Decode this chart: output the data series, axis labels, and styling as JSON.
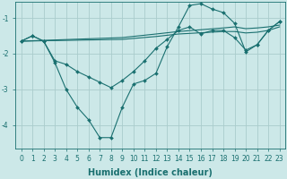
{
  "background_color": "#cce8e8",
  "grid_color": "#aacccc",
  "line_color": "#1a7070",
  "marker_color": "#1a7070",
  "xlabel": "Humidex (Indice chaleur)",
  "xlabel_fontsize": 7,
  "tick_fontsize": 5.5,
  "yticks": [
    -4,
    -3,
    -2,
    -1
  ],
  "xlim": [
    -0.5,
    23.5
  ],
  "ylim": [
    -4.65,
    -0.55
  ],
  "line1_x": [
    0,
    1,
    2,
    3,
    4,
    5,
    6,
    7,
    8,
    9,
    10,
    11,
    12,
    13,
    14,
    15,
    16,
    17,
    18,
    19,
    20,
    21,
    22,
    23
  ],
  "line1_y": [
    -1.65,
    -1.5,
    -1.65,
    -2.25,
    -3.0,
    -3.5,
    -3.85,
    -4.35,
    -4.35,
    -3.5,
    -2.85,
    -2.75,
    -2.55,
    -1.8,
    -1.25,
    -0.65,
    -0.6,
    -0.75,
    -0.85,
    -1.15,
    -1.95,
    -1.75,
    -1.35,
    -1.1
  ],
  "line2_x": [
    0,
    1,
    2,
    3,
    4,
    5,
    6,
    7,
    8,
    9,
    10,
    11,
    12,
    13,
    14,
    15,
    16,
    17,
    18,
    19,
    20,
    21,
    22,
    23
  ],
  "line2_y": [
    -1.65,
    -1.5,
    -1.65,
    -2.2,
    -2.3,
    -2.5,
    -2.65,
    -2.8,
    -2.95,
    -2.75,
    -2.5,
    -2.2,
    -1.85,
    -1.6,
    -1.35,
    -1.25,
    -1.45,
    -1.35,
    -1.35,
    -1.55,
    -1.9,
    -1.75,
    -1.35,
    -1.1
  ],
  "line3_x": [
    0,
    9,
    12,
    14,
    18,
    19,
    20,
    21,
    22,
    23
  ],
  "line3_y": [
    -1.65,
    -1.55,
    -1.45,
    -1.38,
    -1.28,
    -1.25,
    -1.3,
    -1.28,
    -1.25,
    -1.2
  ],
  "line4_x": [
    0,
    9,
    12,
    14,
    18,
    19,
    20,
    21,
    22,
    23
  ],
  "line4_y": [
    -1.65,
    -1.6,
    -1.52,
    -1.45,
    -1.38,
    -1.38,
    -1.42,
    -1.4,
    -1.35,
    -1.25
  ]
}
